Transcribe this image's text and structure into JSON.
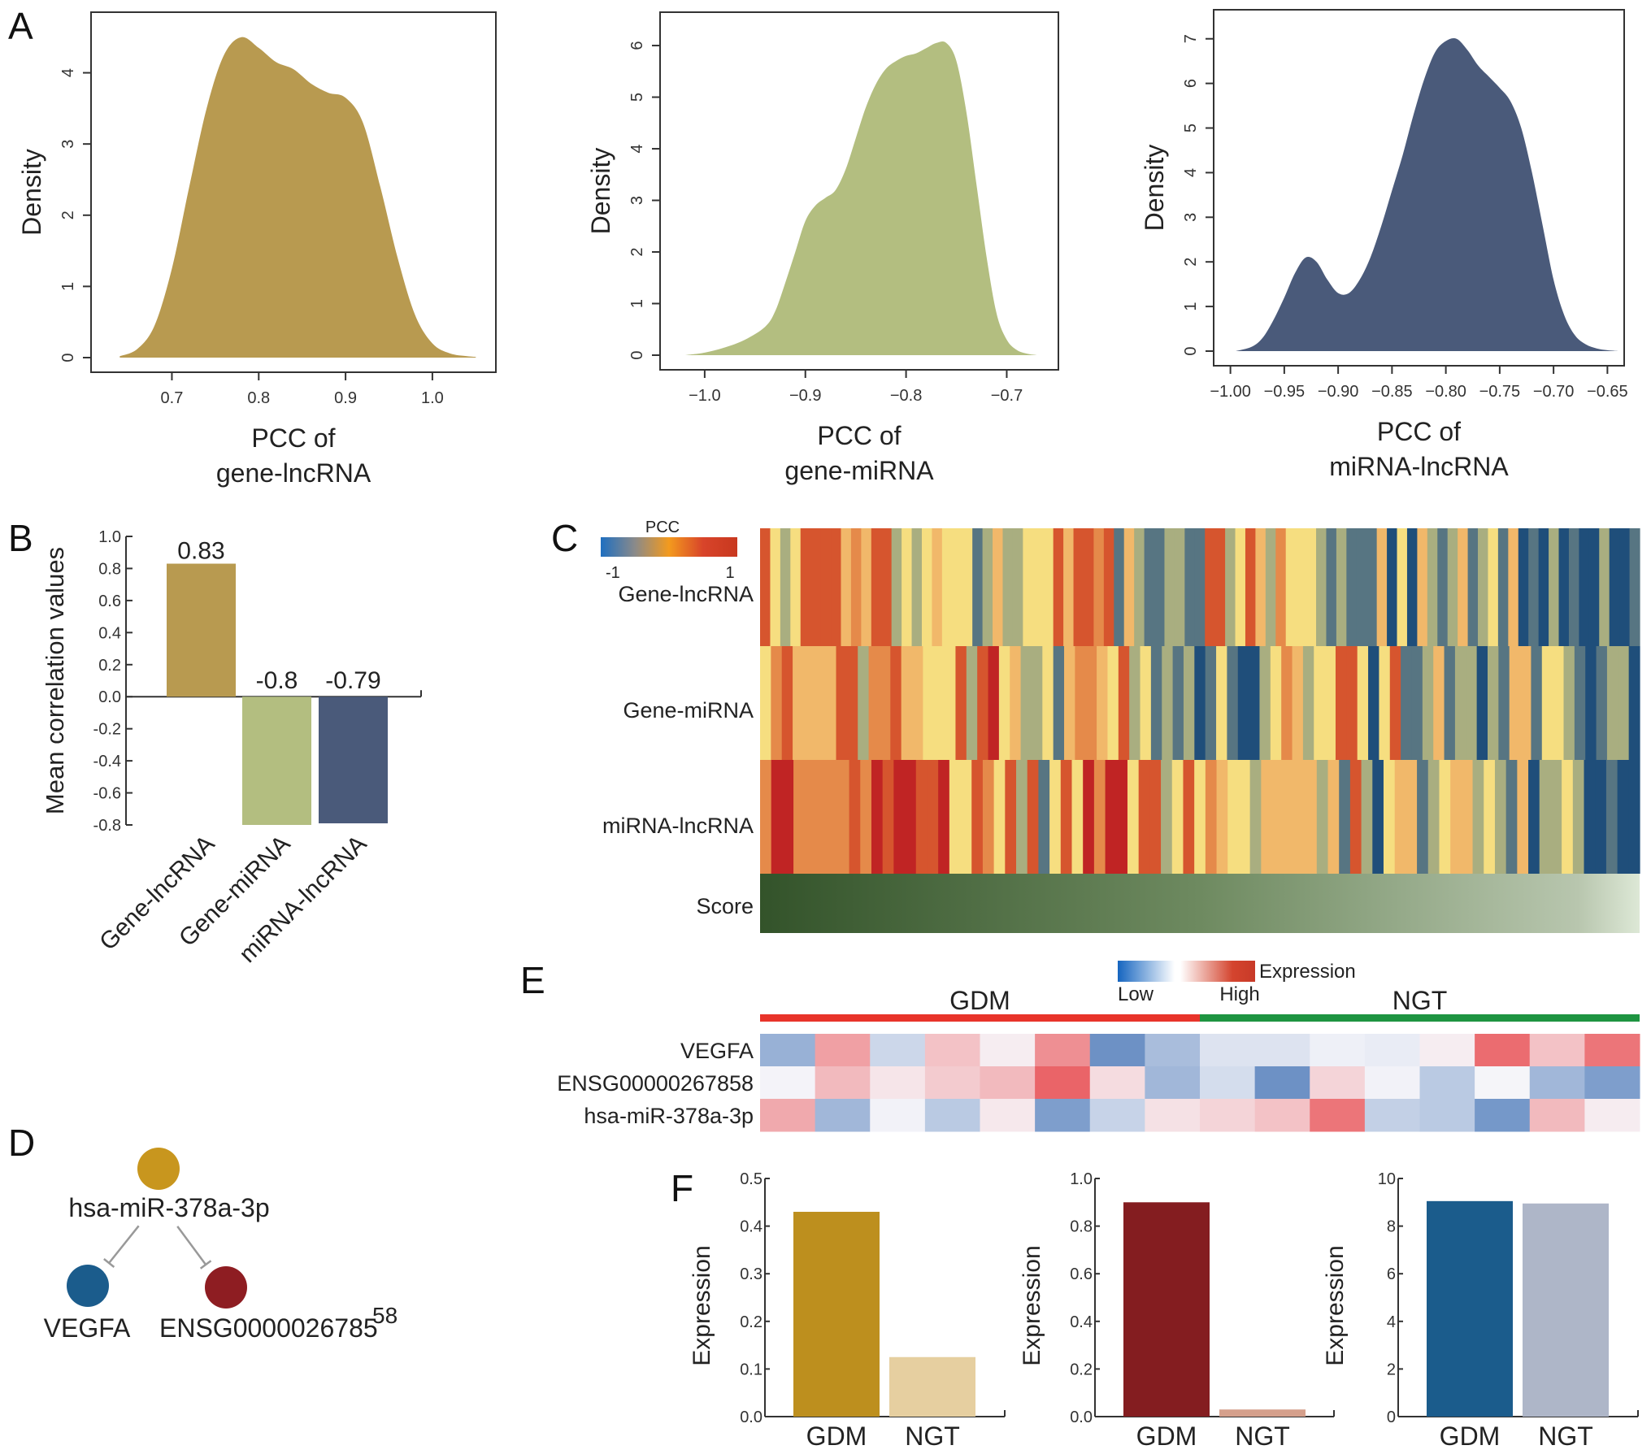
{
  "panels": {
    "A": "A",
    "B": "B",
    "C": "C",
    "D": "D",
    "E": "E",
    "F": "F"
  },
  "chart_data": [
    {
      "id": "A1",
      "type": "area",
      "title": "",
      "xlabel": "PCC of\ngene-lncRNA",
      "xlabel_lines": [
        "PCC of",
        "gene-lncRNA"
      ],
      "ylabel": "Density",
      "color": "#B89A50",
      "xlim": [
        0.62,
        1.06
      ],
      "ylim": [
        0,
        4.6
      ],
      "xticks": [
        0.7,
        0.8,
        0.9,
        1.0
      ],
      "xtick_labels": [
        "0.7",
        "0.8",
        "0.9",
        "1.0"
      ],
      "yticks": [
        0,
        1,
        2,
        3,
        4
      ],
      "ytick_labels": [
        "0",
        "1",
        "2",
        "3",
        "4"
      ],
      "x": [
        0.64,
        0.66,
        0.68,
        0.7,
        0.72,
        0.74,
        0.76,
        0.78,
        0.8,
        0.82,
        0.84,
        0.86,
        0.88,
        0.9,
        0.92,
        0.94,
        0.96,
        0.98,
        1.0,
        1.02,
        1.04,
        1.05
      ],
      "y": [
        0.02,
        0.12,
        0.45,
        1.25,
        2.4,
        3.5,
        4.25,
        4.5,
        4.35,
        4.15,
        4.05,
        3.85,
        3.72,
        3.65,
        3.3,
        2.4,
        1.4,
        0.6,
        0.2,
        0.06,
        0.02,
        0.01
      ]
    },
    {
      "id": "A2",
      "type": "area",
      "title": "",
      "xlabel": "PCC of\ngene-miRNA",
      "xlabel_lines": [
        "PCC of",
        "gene-miRNA"
      ],
      "ylabel": "Density",
      "color": "#B3BE80",
      "xlim": [
        -1.033,
        -0.66
      ],
      "ylim": [
        0,
        6.3
      ],
      "xticks": [
        -1.0,
        -0.9,
        -0.8,
        -0.7
      ],
      "xtick_labels": [
        "−1.0",
        "−0.9",
        "−0.8",
        "−0.7"
      ],
      "yticks": [
        0,
        1,
        2,
        3,
        4,
        5,
        6
      ],
      "ytick_labels": [
        "0",
        "1",
        "2",
        "3",
        "4",
        "5",
        "6"
      ],
      "x": [
        -1.02,
        -1.0,
        -0.98,
        -0.96,
        -0.94,
        -0.93,
        -0.92,
        -0.91,
        -0.9,
        -0.89,
        -0.88,
        -0.87,
        -0.86,
        -0.85,
        -0.84,
        -0.83,
        -0.82,
        -0.81,
        -0.8,
        -0.79,
        -0.78,
        -0.77,
        -0.76,
        -0.75,
        -0.74,
        -0.73,
        -0.72,
        -0.71,
        -0.7,
        -0.69,
        -0.68,
        -0.67
      ],
      "y": [
        0.0,
        0.05,
        0.15,
        0.3,
        0.55,
        0.85,
        1.4,
        2.0,
        2.6,
        2.9,
        3.05,
        3.2,
        3.6,
        4.2,
        4.8,
        5.25,
        5.55,
        5.7,
        5.8,
        5.85,
        5.95,
        6.05,
        6.05,
        5.7,
        4.7,
        3.3,
        1.9,
        0.8,
        0.3,
        0.1,
        0.03,
        0.0
      ]
    },
    {
      "id": "A3",
      "type": "area",
      "title": "",
      "xlabel": "PCC of\nmiRNA-lncRNA",
      "xlabel_lines": [
        "PCC of",
        "miRNA-lncRNA"
      ],
      "ylabel": "Density",
      "color": "#4A5A7A",
      "xlim": [
        -1.005,
        -0.645
      ],
      "ylim": [
        0,
        7.25
      ],
      "xticks": [
        -1.0,
        -0.95,
        -0.9,
        -0.85,
        -0.8,
        -0.75,
        -0.7,
        -0.65
      ],
      "xtick_labels": [
        "−1.00",
        "−0.95",
        "−0.90",
        "−0.85",
        "−0.80",
        "−0.75",
        "−0.70",
        "−0.65"
      ],
      "yticks": [
        0,
        1,
        2,
        3,
        4,
        5,
        6,
        7
      ],
      "ytick_labels": [
        "0",
        "1",
        "2",
        "3",
        "4",
        "5",
        "6",
        "7"
      ],
      "x": [
        -0.995,
        -0.98,
        -0.97,
        -0.96,
        -0.95,
        -0.94,
        -0.93,
        -0.92,
        -0.91,
        -0.9,
        -0.89,
        -0.88,
        -0.87,
        -0.86,
        -0.85,
        -0.84,
        -0.83,
        -0.82,
        -0.81,
        -0.8,
        -0.79,
        -0.78,
        -0.77,
        -0.76,
        -0.75,
        -0.74,
        -0.73,
        -0.72,
        -0.71,
        -0.7,
        -0.69,
        -0.68,
        -0.67,
        -0.66,
        -0.65,
        -0.64
      ],
      "y": [
        0.0,
        0.1,
        0.3,
        0.7,
        1.2,
        1.75,
        2.1,
        2.0,
        1.6,
        1.3,
        1.3,
        1.6,
        2.1,
        2.8,
        3.6,
        4.4,
        5.3,
        6.1,
        6.7,
        6.95,
        7.0,
        6.75,
        6.4,
        6.15,
        5.9,
        5.6,
        5.0,
        4.0,
        2.8,
        1.6,
        0.8,
        0.35,
        0.15,
        0.06,
        0.02,
        0.0
      ]
    },
    {
      "id": "B",
      "type": "bar",
      "title": "",
      "xlabel": "",
      "ylabel": "Mean correlation values",
      "ylim": [
        -0.8,
        1.0
      ],
      "yticks": [
        1.0,
        0.8,
        0.6,
        0.4,
        0.2,
        0.0,
        -0.2,
        -0.4,
        -0.6,
        -0.8
      ],
      "ytick_labels": [
        "1.0",
        "0.8",
        "0.6",
        "0.4",
        "0.2",
        "0.0",
        "-0.2",
        "-0.4",
        "-0.6",
        "-0.8"
      ],
      "categories": [
        "Gene-lncRNA",
        "Gene-miRNA",
        "miRNA-lncRNA"
      ],
      "values": [
        0.83,
        -0.8,
        -0.79
      ],
      "value_labels": [
        "0.83",
        "-0.8",
        "-0.79"
      ],
      "colors": [
        "#B89A50",
        "#B3BE80",
        "#4A5A7A"
      ]
    },
    {
      "id": "C",
      "type": "heatmap",
      "title": "",
      "legend": {
        "title": "PCC",
        "min_label": "-1",
        "max_label": "1",
        "colors": [
          "#1F6FC0",
          "#8A8A8A",
          "#F39A1E",
          "#D8442A",
          "#C8381F"
        ]
      },
      "rows": [
        "Gene-lncRNA",
        "Gene-miRNA",
        "miRNA-lncRNA"
      ],
      "score_row": "Score",
      "score_colors": [
        "#33532A",
        "#DDE8D6"
      ],
      "palette": {
        "-2": "#1F4E7A",
        "-1": "#577582",
        "0": "#A9AE80",
        "1": "#F6DE80",
        "2": "#F1B86A",
        "3": "#E58A4A",
        "4": "#D6552E",
        "5": "#C02424"
      },
      "values": [
        [
          4,
          1,
          0,
          1,
          4,
          4,
          4,
          4,
          2,
          3,
          2,
          4,
          4,
          0,
          1,
          0,
          1,
          2,
          1,
          1,
          1,
          -1,
          0,
          2,
          0,
          0,
          1,
          1,
          1,
          4,
          2,
          4,
          4,
          3,
          4,
          -1,
          2,
          0,
          -1,
          -1,
          0,
          0,
          -1,
          -1,
          4,
          4,
          0,
          1,
          4,
          2,
          0,
          3,
          1,
          1,
          1,
          0,
          -1,
          0,
          -1,
          -1,
          -1,
          2,
          -2,
          1,
          -2,
          2,
          0,
          -1,
          0,
          2,
          -1,
          0,
          1,
          -1,
          2,
          -2,
          -1,
          -2,
          0,
          -2,
          -1,
          -2,
          -2,
          0,
          -2,
          -2,
          -1
        ],
        [
          1,
          3,
          4,
          2,
          2,
          2,
          2,
          4,
          4,
          0,
          3,
          3,
          4,
          2,
          2,
          1,
          1,
          1,
          4,
          0,
          4,
          5,
          1,
          2,
          0,
          0,
          1,
          -1,
          2,
          3,
          3,
          2,
          1,
          4,
          0,
          1,
          -1,
          0,
          -1,
          0,
          -2,
          -1,
          1,
          -1,
          -2,
          -2,
          0,
          1,
          3,
          2,
          0,
          1,
          1,
          4,
          4,
          1,
          -2,
          1,
          4,
          -1,
          -1,
          0,
          2,
          -1,
          0,
          0,
          -2,
          0,
          -1,
          2,
          2,
          -1,
          1,
          1,
          0,
          -1,
          -2,
          -1,
          0,
          0,
          -2
        ],
        [
          3,
          5,
          5,
          3,
          3,
          3,
          3,
          3,
          4,
          3,
          5,
          4,
          5,
          5,
          4,
          4,
          5,
          1,
          1,
          4,
          3,
          1,
          4,
          0,
          4,
          -1,
          1,
          4,
          1,
          5,
          3,
          5,
          5,
          1,
          4,
          4,
          0,
          1,
          4,
          1,
          3,
          2,
          1,
          1,
          0,
          2,
          2,
          2,
          2,
          2,
          0,
          2,
          -1,
          4,
          0,
          -2,
          1,
          2,
          2,
          -1,
          0,
          1,
          2,
          2,
          0,
          1,
          0,
          -1,
          2,
          -2,
          0,
          0,
          1,
          0,
          -2,
          -2,
          -1,
          -2,
          -2
        ]
      ]
    },
    {
      "id": "E",
      "type": "heatmap",
      "title": "",
      "legend": {
        "title": "Expression",
        "low_label": "Low",
        "high_label": "High"
      },
      "groups": [
        {
          "name": "GDM",
          "color": "#E8342A",
          "n": 8
        },
        {
          "name": "NGT",
          "color": "#1E9441",
          "n": 8
        }
      ],
      "rows": [
        "VEGFA",
        "ENSG00000267858",
        "hsa-miR-378a-3p"
      ],
      "values": [
        [
          -0.55,
          0.5,
          -0.25,
          0.3,
          0.05,
          0.6,
          -0.8,
          -0.45,
          -0.15,
          -0.15,
          -0.05,
          -0.08,
          0.05,
          0.8,
          0.3,
          0.75
        ],
        [
          -0.02,
          0.35,
          0.1,
          0.25,
          0.35,
          0.85,
          0.15,
          -0.5,
          -0.2,
          -0.8,
          0.2,
          -0.03,
          -0.35,
          -0.01,
          -0.5,
          -0.7
        ],
        [
          0.45,
          -0.5,
          -0.03,
          -0.35,
          0.08,
          -0.7,
          -0.28,
          0.12,
          0.2,
          0.3,
          0.75,
          -0.3,
          -0.35,
          -0.75,
          0.35,
          0.06
        ]
      ]
    },
    {
      "id": "F1",
      "type": "bar",
      "title": "",
      "ylabel": "Expression",
      "categories": [
        "GDM",
        "NGT"
      ],
      "values": [
        0.43,
        0.125
      ],
      "colors": [
        "#BD8F1E",
        "#E6CFA0"
      ],
      "ylim": [
        0,
        0.5
      ],
      "yticks": [
        0.0,
        0.1,
        0.2,
        0.3,
        0.4,
        0.5
      ],
      "ytick_labels": [
        "0.0",
        "0.1",
        "0.2",
        "0.3",
        "0.4",
        "0.5"
      ]
    },
    {
      "id": "F2",
      "type": "bar",
      "title": "",
      "ylabel": "Expression",
      "categories": [
        "GDM",
        "NGT"
      ],
      "values": [
        0.9,
        0.03
      ],
      "colors": [
        "#841D20",
        "#D5A08C"
      ],
      "ylim": [
        0,
        1.0
      ],
      "yticks": [
        0.0,
        0.2,
        0.4,
        0.6,
        0.8,
        1.0
      ],
      "ytick_labels": [
        "0.0",
        "0.2",
        "0.4",
        "0.6",
        "0.8",
        "1.0"
      ]
    },
    {
      "id": "F3",
      "type": "bar",
      "title": "",
      "ylabel": "Expression",
      "categories": [
        "GDM",
        "NGT"
      ],
      "values": [
        9.05,
        8.95
      ],
      "colors": [
        "#1B5C8C",
        "#AEB6C8"
      ],
      "ylim": [
        0,
        10
      ],
      "yticks": [
        0,
        2,
        4,
        6,
        8,
        10
      ],
      "ytick_labels": [
        "0",
        "2",
        "4",
        "6",
        "8",
        "10"
      ]
    }
  ],
  "network": {
    "nodes": [
      {
        "id": "mir",
        "label": "hsa-miR-378a-3p",
        "color": "#C8961E"
      },
      {
        "id": "vegfa",
        "label": "VEGFA",
        "color": "#1B5C8C"
      },
      {
        "id": "ensg",
        "label": "ENSG0000026785",
        "label_suffix": "58",
        "color": "#8E1D22"
      }
    ],
    "edges": [
      {
        "from": "mir",
        "to": "vegfa",
        "type": "inhibition"
      },
      {
        "from": "mir",
        "to": "ensg",
        "type": "inhibition"
      }
    ]
  }
}
